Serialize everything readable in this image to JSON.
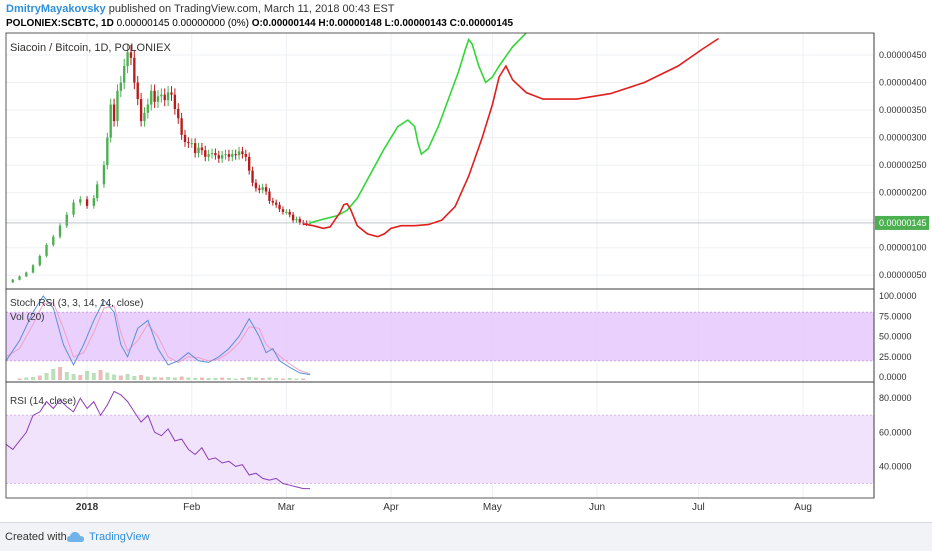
{
  "header": {
    "author": "DmitryMayakovsky",
    "published_text": "published on TradingView.com, March 11, 2018 00:43 EST",
    "symbol": "POLONIEX:SCBTC, 1D",
    "quote": "0.00000145 0.00000000 (0%)",
    "ohlc": "O:0.00000144 H:0.00000148 L:0.00000143 C:0.00000145"
  },
  "footer": {
    "created_with": "Created with",
    "brand": "TradingView"
  },
  "chart_data": {
    "type": "candlestick",
    "title": "Siacoin / Bitcoin, 1D, POLONIEX",
    "price_axis": {
      "ticks": [
        "0.00000050",
        "0.00000100",
        "0.00000150",
        "0.00000200",
        "0.00000250",
        "0.00000300",
        "0.00000350",
        "0.00000400",
        "0.00000450"
      ],
      "last_price": "0.00000145",
      "range": [
        2.5e-07,
        4.9e-06
      ]
    },
    "time_axis": {
      "ticks": [
        {
          "label": "2018",
          "day": 0
        },
        {
          "label": "Feb",
          "day": 31
        },
        {
          "label": "Mar",
          "day": 59
        },
        {
          "label": "Apr",
          "day": 90
        },
        {
          "label": "May",
          "day": 120
        },
        {
          "label": "Jun",
          "day": 151
        },
        {
          "label": "Jul",
          "day": 181
        },
        {
          "label": "Aug",
          "day": 212
        }
      ],
      "day_range": [
        -24,
        233
      ]
    },
    "price_series": [
      [
        -24,
        3.7e-07
      ],
      [
        -22,
        4.2e-07
      ],
      [
        -20,
        4.8e-07
      ],
      [
        -18,
        5.5e-07
      ],
      [
        -16,
        6.8e-07
      ],
      [
        -14,
        8.5e-07
      ],
      [
        -12,
        1.05e-06
      ],
      [
        -10,
        1.2e-06
      ],
      [
        -8,
        1.4e-06
      ],
      [
        -6,
        1.6e-06
      ],
      [
        -4,
        1.82e-06
      ],
      [
        -2,
        1.88e-06
      ],
      [
        0,
        1.76e-06
      ],
      [
        2,
        1.9e-06
      ],
      [
        3,
        2.15e-06
      ],
      [
        5,
        2.5e-06
      ],
      [
        6,
        3e-06
      ],
      [
        7,
        3.6e-06
      ],
      [
        8,
        3.3e-06
      ],
      [
        9,
        3.85e-06
      ],
      [
        10,
        4e-06
      ],
      [
        11,
        4.3e-06
      ],
      [
        12,
        4.55e-06
      ],
      [
        13,
        4.45e-06
      ],
      [
        14,
        4e-06
      ],
      [
        15,
        3.7e-06
      ],
      [
        16,
        3.3e-06
      ],
      [
        17,
        3.45e-06
      ],
      [
        18,
        3.6e-06
      ],
      [
        19,
        3.85e-06
      ],
      [
        20,
        3.65e-06
      ],
      [
        21,
        3.75e-06
      ],
      [
        22,
        3.78e-06
      ],
      [
        23,
        3.68e-06
      ],
      [
        24,
        3.82e-06
      ],
      [
        25,
        3.78e-06
      ],
      [
        26,
        3.52e-06
      ],
      [
        27,
        3.35e-06
      ],
      [
        28,
        3.05e-06
      ],
      [
        29,
        2.92e-06
      ],
      [
        30,
        2.9e-06
      ],
      [
        31,
        2.9e-06
      ],
      [
        32,
        2.72e-06
      ],
      [
        33,
        2.82e-06
      ],
      [
        34,
        2.77e-06
      ],
      [
        35,
        2.65e-06
      ],
      [
        36,
        2.7e-06
      ],
      [
        37,
        2.72e-06
      ],
      [
        38,
        2.68e-06
      ],
      [
        39,
        2.62e-06
      ],
      [
        40,
        2.68e-06
      ],
      [
        41,
        2.7e-06
      ],
      [
        42,
        2.65e-06
      ],
      [
        43,
        2.7e-06
      ],
      [
        44,
        2.68e-06
      ],
      [
        45,
        2.75e-06
      ],
      [
        46,
        2.7e-06
      ],
      [
        47,
        2.65e-06
      ],
      [
        48,
        2.4e-06
      ],
      [
        49,
        2.18e-06
      ],
      [
        50,
        2.08e-06
      ],
      [
        51,
        2.05e-06
      ],
      [
        52,
        2.1e-06
      ],
      [
        53,
        2.02e-06
      ],
      [
        54,
        1.85e-06
      ],
      [
        55,
        1.82e-06
      ],
      [
        56,
        1.78e-06
      ],
      [
        57,
        1.7e-06
      ],
      [
        58,
        1.65e-06
      ],
      [
        59,
        1.65e-06
      ],
      [
        60,
        1.6e-06
      ],
      [
        61,
        1.5e-06
      ],
      [
        62,
        1.52e-06
      ],
      [
        63,
        1.46e-06
      ],
      [
        64,
        1.45e-06
      ],
      [
        65,
        1.44e-06
      ],
      [
        66,
        1.45e-06
      ]
    ],
    "projection_green": [
      [
        66,
        1.45e-06
      ],
      [
        70,
        1.52e-06
      ],
      [
        74,
        1.58e-06
      ],
      [
        77,
        1.68e-06
      ],
      [
        80,
        1.9e-06
      ],
      [
        84,
        2.35e-06
      ],
      [
        88,
        2.8e-06
      ],
      [
        92,
        3.2e-06
      ],
      [
        95,
        3.32e-06
      ],
      [
        97,
        3.2e-06
      ],
      [
        98,
        2.9e-06
      ],
      [
        99,
        2.7e-06
      ],
      [
        101,
        2.8e-06
      ],
      [
        104,
        3.2e-06
      ],
      [
        107,
        3.7e-06
      ],
      [
        110,
        4.2e-06
      ],
      [
        112,
        4.6e-06
      ],
      [
        113,
        4.78e-06
      ],
      [
        114,
        4.7e-06
      ],
      [
        116,
        4.3e-06
      ],
      [
        118,
        4e-06
      ],
      [
        120,
        4.1e-06
      ],
      [
        122,
        4.3e-06
      ],
      [
        126,
        4.65e-06
      ],
      [
        130,
        4.9e-06
      ]
    ],
    "projection_red": [
      [
        64,
        1.43e-06
      ],
      [
        67,
        1.4e-06
      ],
      [
        70,
        1.35e-06
      ],
      [
        72,
        1.38e-06
      ],
      [
        75,
        1.65e-06
      ],
      [
        76,
        1.78e-06
      ],
      [
        77,
        1.8e-06
      ],
      [
        78,
        1.7e-06
      ],
      [
        80,
        1.4e-06
      ],
      [
        83,
        1.25e-06
      ],
      [
        86,
        1.2e-06
      ],
      [
        88,
        1.25e-06
      ],
      [
        90,
        1.35e-06
      ],
      [
        93,
        1.4e-06
      ],
      [
        97,
        1.4e-06
      ],
      [
        101,
        1.42e-06
      ],
      [
        105,
        1.5e-06
      ],
      [
        109,
        1.75e-06
      ],
      [
        113,
        2.3e-06
      ],
      [
        117,
        3e-06
      ],
      [
        120,
        3.6e-06
      ],
      [
        122,
        4.1e-06
      ],
      [
        124,
        4.3e-06
      ],
      [
        126,
        4.05e-06
      ],
      [
        130,
        3.82e-06
      ],
      [
        135,
        3.7e-06
      ],
      [
        145,
        3.7e-06
      ],
      [
        155,
        3.8e-06
      ],
      [
        165,
        4e-06
      ],
      [
        175,
        4.3e-06
      ],
      [
        182,
        4.6e-06
      ],
      [
        187,
        4.8e-06
      ]
    ],
    "stoch_rsi": {
      "title": "Stoch RSI (3, 3, 14, 14, close)",
      "ticks": [
        "100.0000",
        "75.0000",
        "50.0000",
        "25.0000",
        "0.0000"
      ],
      "k": [
        [
          -24,
          20
        ],
        [
          -20,
          45
        ],
        [
          -16,
          80
        ],
        [
          -13,
          100
        ],
        [
          -10,
          85
        ],
        [
          -7,
          40
        ],
        [
          -4,
          15
        ],
        [
          -1,
          40
        ],
        [
          2,
          70
        ],
        [
          5,
          95
        ],
        [
          8,
          80
        ],
        [
          10,
          40
        ],
        [
          12,
          25
        ],
        [
          15,
          60
        ],
        [
          18,
          70
        ],
        [
          21,
          35
        ],
        [
          24,
          15
        ],
        [
          27,
          20
        ],
        [
          30,
          30
        ],
        [
          33,
          20
        ],
        [
          36,
          18
        ],
        [
          39,
          25
        ],
        [
          42,
          35
        ],
        [
          45,
          50
        ],
        [
          48,
          72
        ],
        [
          51,
          50
        ],
        [
          53,
          30
        ],
        [
          55,
          35
        ],
        [
          57,
          20
        ],
        [
          60,
          12
        ],
        [
          63,
          5
        ],
        [
          66,
          3
        ]
      ],
      "d": [
        [
          -24,
          25
        ],
        [
          -20,
          35
        ],
        [
          -16,
          65
        ],
        [
          -13,
          90
        ],
        [
          -10,
          92
        ],
        [
          -7,
          60
        ],
        [
          -4,
          25
        ],
        [
          -1,
          30
        ],
        [
          2,
          55
        ],
        [
          5,
          85
        ],
        [
          8,
          88
        ],
        [
          10,
          55
        ],
        [
          12,
          32
        ],
        [
          15,
          45
        ],
        [
          18,
          65
        ],
        [
          21,
          50
        ],
        [
          24,
          25
        ],
        [
          27,
          18
        ],
        [
          30,
          25
        ],
        [
          33,
          24
        ],
        [
          36,
          20
        ],
        [
          39,
          22
        ],
        [
          42,
          30
        ],
        [
          45,
          42
        ],
        [
          48,
          62
        ],
        [
          51,
          60
        ],
        [
          53,
          40
        ],
        [
          55,
          33
        ],
        [
          57,
          26
        ],
        [
          60,
          16
        ],
        [
          63,
          8
        ],
        [
          66,
          4
        ]
      ]
    },
    "volume": {
      "title": "Vol (20)",
      "bars": [
        [
          -20,
          3
        ],
        [
          -18,
          5
        ],
        [
          -16,
          6
        ],
        [
          -14,
          9
        ],
        [
          -12,
          14
        ],
        [
          -10,
          22
        ],
        [
          -8,
          26
        ],
        [
          -6,
          16
        ],
        [
          -4,
          12
        ],
        [
          -2,
          10
        ],
        [
          0,
          18
        ],
        [
          2,
          14
        ],
        [
          4,
          20
        ],
        [
          6,
          15
        ],
        [
          8,
          11
        ],
        [
          10,
          9
        ],
        [
          12,
          12
        ],
        [
          14,
          8
        ],
        [
          16,
          10
        ],
        [
          18,
          7
        ],
        [
          20,
          6
        ],
        [
          22,
          5
        ],
        [
          24,
          6
        ],
        [
          26,
          5
        ],
        [
          28,
          7
        ],
        [
          30,
          5
        ],
        [
          32,
          4
        ],
        [
          34,
          5
        ],
        [
          36,
          4
        ],
        [
          38,
          4
        ],
        [
          40,
          5
        ],
        [
          42,
          4
        ],
        [
          44,
          3
        ],
        [
          46,
          4
        ],
        [
          48,
          6
        ],
        [
          50,
          5
        ],
        [
          52,
          4
        ],
        [
          54,
          5
        ],
        [
          56,
          4
        ],
        [
          58,
          3
        ],
        [
          60,
          4
        ],
        [
          62,
          3
        ],
        [
          64,
          3
        ]
      ]
    },
    "rsi": {
      "title": "RSI (14, close)",
      "ticks": [
        "80.0000",
        "60.0000",
        "40.0000"
      ],
      "band": [
        30,
        70
      ],
      "range": [
        25,
        86
      ],
      "values": [
        [
          -24,
          53
        ],
        [
          -22,
          50
        ],
        [
          -20,
          55
        ],
        [
          -18,
          60
        ],
        [
          -16,
          70
        ],
        [
          -14,
          72
        ],
        [
          -12,
          78
        ],
        [
          -10,
          74
        ],
        [
          -8,
          79
        ],
        [
          -6,
          75
        ],
        [
          -4,
          72
        ],
        [
          -2,
          80
        ],
        [
          0,
          74
        ],
        [
          2,
          78
        ],
        [
          4,
          70
        ],
        [
          6,
          76
        ],
        [
          8,
          84
        ],
        [
          10,
          82
        ],
        [
          12,
          78
        ],
        [
          14,
          72
        ],
        [
          16,
          66
        ],
        [
          18,
          70
        ],
        [
          20,
          60
        ],
        [
          22,
          58
        ],
        [
          24,
          62
        ],
        [
          26,
          55
        ],
        [
          28,
          56
        ],
        [
          30,
          50
        ],
        [
          32,
          47
        ],
        [
          34,
          51
        ],
        [
          36,
          44
        ],
        [
          38,
          45
        ],
        [
          40,
          42
        ],
        [
          42,
          43
        ],
        [
          44,
          40
        ],
        [
          46,
          41
        ],
        [
          48,
          35
        ],
        [
          50,
          36
        ],
        [
          52,
          33
        ],
        [
          54,
          32
        ],
        [
          56,
          33
        ],
        [
          58,
          30
        ],
        [
          60,
          29
        ],
        [
          62,
          28
        ],
        [
          64,
          27
        ],
        [
          66,
          27
        ]
      ]
    },
    "colors": {
      "up": "#4caf50",
      "down": "#b71c1c",
      "projection_green": "#32d636",
      "projection_red": "#e01e1e",
      "stoch_k": "#5b8fd6",
      "stoch_d": "#f0a0c8",
      "stoch_band": "#e6c8fb",
      "rsi_line": "#8a3db8",
      "rsi_band": "#f2e3fc",
      "last_price_bg": "#4caf50"
    }
  }
}
